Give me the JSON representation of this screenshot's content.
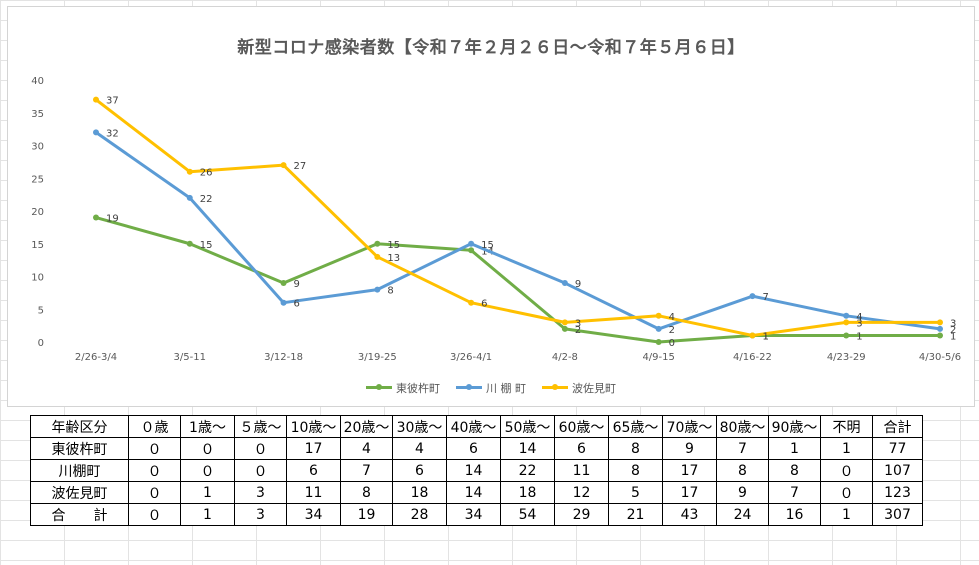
{
  "chart_data": {
    "type": "line",
    "title": "新型コロナ感染者数【令和７年２月２６日～令和７年５月６日】",
    "categories": [
      "2/26-3/4",
      "3/5-11",
      "3/12-18",
      "3/19-25",
      "3/26-4/1",
      "4/2-8",
      "4/9-15",
      "4/16-22",
      "4/23-29",
      "4/30-5/6"
    ],
    "ylim": [
      0,
      40
    ],
    "yticks": [
      0,
      5,
      10,
      15,
      20,
      25,
      30,
      35,
      40
    ],
    "grid": false,
    "legend_position": "bottom",
    "series": [
      {
        "name": "東彼杵町",
        "color": "#70ad47",
        "values": [
          19,
          15,
          9,
          15,
          14,
          2,
          0,
          1,
          1,
          1
        ]
      },
      {
        "name": "川 棚 町",
        "color": "#5b9bd5",
        "values": [
          32,
          22,
          6,
          8,
          15,
          9,
          2,
          7,
          4,
          2
        ]
      },
      {
        "name": "波佐見町",
        "color": "#ffc000",
        "values": [
          37,
          26,
          27,
          13,
          6,
          3,
          4,
          1,
          3,
          3
        ]
      }
    ]
  },
  "table": {
    "headers": [
      "年齢区分",
      "０歳",
      "1歳～",
      "５歳～",
      "10歳～",
      "20歳～",
      "30歳～",
      "40歳～",
      "50歳～",
      "60歳～",
      "65歳～",
      "70歳～",
      "80歳～",
      "90歳～",
      "不明",
      "合計"
    ],
    "rows": [
      [
        "東彼杵町",
        "０",
        "０",
        "０",
        "17",
        "4",
        "4",
        "6",
        "14",
        "6",
        "8",
        "9",
        "7",
        "1",
        "1",
        "77"
      ],
      [
        "川棚町",
        "０",
        "０",
        "０",
        "6",
        "7",
        "6",
        "14",
        "22",
        "11",
        "8",
        "17",
        "8",
        "8",
        "０",
        "107"
      ],
      [
        "波佐見町",
        "０",
        "1",
        "3",
        "11",
        "8",
        "18",
        "14",
        "18",
        "12",
        "5",
        "17",
        "9",
        "7",
        "０",
        "123"
      ],
      [
        "合　　計",
        "０",
        "1",
        "3",
        "34",
        "19",
        "28",
        "34",
        "54",
        "29",
        "21",
        "43",
        "24",
        "16",
        "1",
        "307"
      ]
    ]
  }
}
